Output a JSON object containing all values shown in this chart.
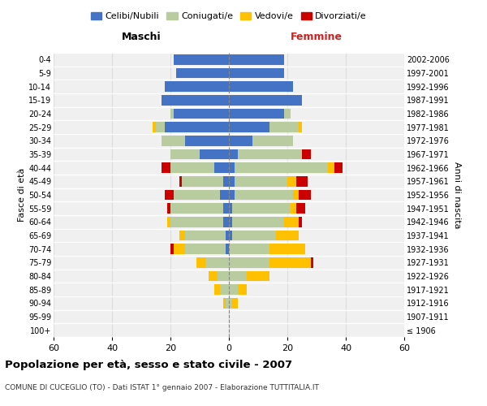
{
  "age_groups": [
    "100+",
    "95-99",
    "90-94",
    "85-89",
    "80-84",
    "75-79",
    "70-74",
    "65-69",
    "60-64",
    "55-59",
    "50-54",
    "45-49",
    "40-44",
    "35-39",
    "30-34",
    "25-29",
    "20-24",
    "15-19",
    "10-14",
    "5-9",
    "0-4"
  ],
  "birth_years": [
    "≤ 1906",
    "1907-1911",
    "1912-1916",
    "1917-1921",
    "1922-1926",
    "1927-1931",
    "1932-1936",
    "1937-1941",
    "1942-1946",
    "1947-1951",
    "1952-1956",
    "1957-1961",
    "1962-1966",
    "1967-1971",
    "1972-1976",
    "1977-1981",
    "1982-1986",
    "1987-1991",
    "1992-1996",
    "1997-2001",
    "2002-2006"
  ],
  "maschi": {
    "celibi": [
      0,
      0,
      0,
      0,
      0,
      0,
      1,
      1,
      2,
      2,
      3,
      2,
      5,
      10,
      15,
      22,
      19,
      23,
      22,
      18,
      19
    ],
    "coniugati": [
      0,
      0,
      1,
      3,
      4,
      8,
      14,
      14,
      18,
      18,
      16,
      14,
      15,
      10,
      8,
      3,
      1,
      0,
      0,
      0,
      0
    ],
    "vedovi": [
      0,
      0,
      1,
      2,
      3,
      3,
      4,
      2,
      1,
      0,
      0,
      0,
      0,
      0,
      0,
      1,
      0,
      0,
      0,
      0,
      0
    ],
    "divorziati": [
      0,
      0,
      0,
      0,
      0,
      0,
      1,
      0,
      0,
      1,
      3,
      1,
      3,
      0,
      0,
      0,
      0,
      0,
      0,
      0,
      0
    ]
  },
  "femmine": {
    "nubili": [
      0,
      0,
      0,
      0,
      0,
      0,
      0,
      1,
      1,
      1,
      2,
      2,
      2,
      3,
      8,
      14,
      19,
      25,
      22,
      19,
      19
    ],
    "coniugate": [
      0,
      0,
      1,
      3,
      6,
      14,
      14,
      15,
      18,
      20,
      20,
      18,
      32,
      22,
      14,
      10,
      2,
      0,
      0,
      0,
      0
    ],
    "vedove": [
      0,
      0,
      2,
      3,
      8,
      14,
      12,
      8,
      5,
      2,
      2,
      3,
      2,
      0,
      0,
      1,
      0,
      0,
      0,
      0,
      0
    ],
    "divorziate": [
      0,
      0,
      0,
      0,
      0,
      1,
      0,
      0,
      1,
      3,
      4,
      4,
      3,
      3,
      0,
      0,
      0,
      0,
      0,
      0,
      0
    ]
  },
  "colors": {
    "celibi_nubili": "#4472c4",
    "coniugati": "#b8cca0",
    "vedovi": "#ffc000",
    "divorziati": "#cc0000"
  },
  "xlim": 60,
  "title": "Popolazione per età, sesso e stato civile - 2007",
  "subtitle": "COMUNE DI CUCEGLIO (TO) - Dati ISTAT 1° gennaio 2007 - Elaborazione TUTTITALIA.IT",
  "xlabel_left": "Maschi",
  "xlabel_right": "Femmine",
  "ylabel_left": "Fasce di età",
  "ylabel_right": "Anni di nascita",
  "legend_labels": [
    "Celibi/Nubili",
    "Coniugati/e",
    "Vedovi/e",
    "Divorziati/e"
  ],
  "bg_color": "#ffffff",
  "plot_bg_color": "#f0f0f0",
  "grid_color": "#dddddd"
}
